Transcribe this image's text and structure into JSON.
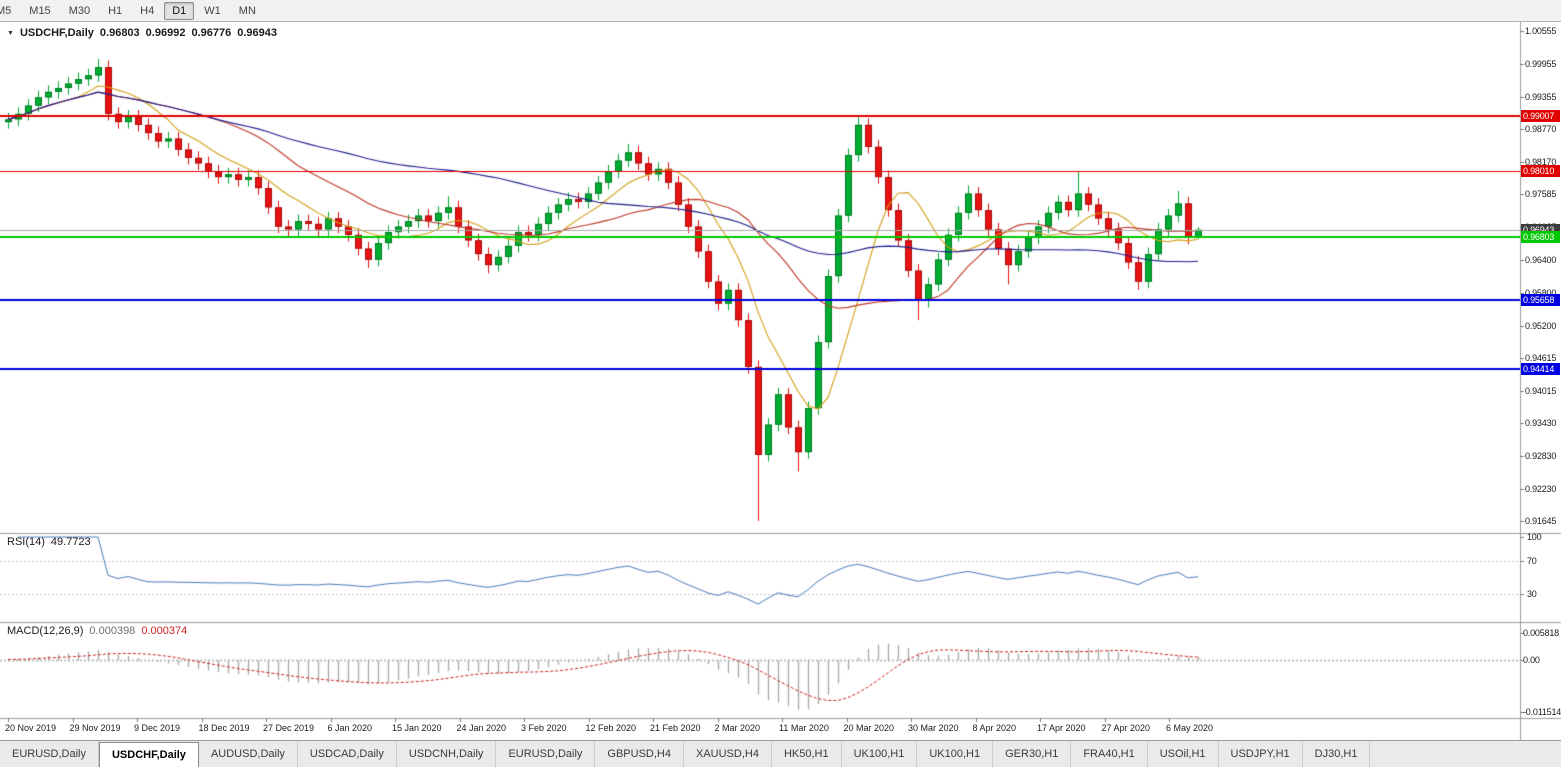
{
  "toolbar": {
    "timeframes": [
      {
        "label": "M5",
        "active": false
      },
      {
        "label": "M15",
        "active": false
      },
      {
        "label": "M30",
        "active": false
      },
      {
        "label": "H1",
        "active": false
      },
      {
        "label": "H4",
        "active": false
      },
      {
        "label": "D1",
        "active": true
      },
      {
        "label": "W1",
        "active": false
      },
      {
        "label": "MN",
        "active": false
      }
    ]
  },
  "chart": {
    "type": "candlestick",
    "title": {
      "symbol": "USDCHF,Daily",
      "open": "0.96803",
      "high": "0.96992",
      "low": "0.96776",
      "close": "0.96943"
    },
    "up_color": "#00ad33",
    "up_border": "#007a24",
    "down_color": "#e81212",
    "down_border": "#a30e0e",
    "price_axis": {
      "top": 1.0072,
      "bottom": 0.9143,
      "labels": [
        "1.00555",
        "0.99955",
        "0.99355",
        "0.98770",
        "0.98170",
        "0.97585",
        "0.96985",
        "0.96400",
        "0.95800",
        "0.95200",
        "0.94615",
        "0.94015",
        "0.93430",
        "0.92830",
        "0.92230",
        "0.91645"
      ]
    },
    "hlines": [
      {
        "price": 0.99007,
        "label": "0.99007",
        "color": "#e00000",
        "width": 2
      },
      {
        "price": 0.9801,
        "label": "0.98010",
        "color": "#e00000",
        "width": 1
      },
      {
        "price": 0.96803,
        "label": "0.96803",
        "color": "#00c800",
        "width": 2
      },
      {
        "price": 0.95658,
        "label": "0.95658",
        "color": "#0000e0",
        "width": 2
      },
      {
        "price": 0.94414,
        "label": "0.94414",
        "color": "#0000e0",
        "width": 2
      }
    ],
    "last_price": {
      "value": 0.96943,
      "label": "0.96943",
      "line_color": "#ababab",
      "box_color": "#3c3c3c"
    },
    "moving_averages": [
      {
        "period": 8,
        "color": "#d4a017"
      },
      {
        "period": 20,
        "color": "#c0392b"
      },
      {
        "period": 50,
        "color": "#1f1f8f"
      }
    ],
    "dates": [
      "20 Nov 2019",
      "29 Nov 2019",
      "9 Dec 2019",
      "18 Dec 2019",
      "27 Dec 2019",
      "6 Jan 2020",
      "15 Jan 2020",
      "24 Jan 2020",
      "3 Feb 2020",
      "12 Feb 2020",
      "21 Feb 2020",
      "2 Mar 2020",
      "11 Mar 2020",
      "20 Mar 2020",
      "30 Mar 2020",
      "8 Apr 2020",
      "17 Apr 2020",
      "27 Apr 2020",
      "6 May 2020"
    ],
    "candles": [
      [
        0.989,
        0.9907,
        0.9878,
        0.9895
      ],
      [
        0.9895,
        0.9917,
        0.9883,
        0.9905
      ],
      [
        0.9905,
        0.9932,
        0.9893,
        0.992
      ],
      [
        0.992,
        0.9947,
        0.9908,
        0.9935
      ],
      [
        0.9935,
        0.9957,
        0.9923,
        0.9945
      ],
      [
        0.9945,
        0.9964,
        0.9933,
        0.9952
      ],
      [
        0.9952,
        0.9972,
        0.994,
        0.996
      ],
      [
        0.996,
        0.998,
        0.9948,
        0.9968
      ],
      [
        0.9968,
        0.9987,
        0.9956,
        0.9975
      ],
      [
        0.9975,
        1.0005,
        0.9963,
        0.999
      ],
      [
        0.999,
        1.0002,
        0.9893,
        0.9905
      ],
      [
        0.9905,
        0.9917,
        0.9878,
        0.989
      ],
      [
        0.989,
        0.9912,
        0.9878,
        0.99
      ],
      [
        0.99,
        0.9912,
        0.9873,
        0.9885
      ],
      [
        0.9885,
        0.9897,
        0.9858,
        0.987
      ],
      [
        0.987,
        0.9882,
        0.9843,
        0.9855
      ],
      [
        0.9855,
        0.9872,
        0.9843,
        0.986
      ],
      [
        0.986,
        0.9872,
        0.9828,
        0.984
      ],
      [
        0.984,
        0.9852,
        0.9813,
        0.9825
      ],
      [
        0.9825,
        0.9837,
        0.9803,
        0.9815
      ],
      [
        0.9815,
        0.9827,
        0.9788,
        0.98
      ],
      [
        0.98,
        0.9812,
        0.9778,
        0.979
      ],
      [
        0.979,
        0.9807,
        0.9778,
        0.9795
      ],
      [
        0.9795,
        0.9807,
        0.9773,
        0.9785
      ],
      [
        0.9785,
        0.9802,
        0.9773,
        0.979
      ],
      [
        0.979,
        0.9802,
        0.9758,
        0.977
      ],
      [
        0.977,
        0.9782,
        0.9723,
        0.9735
      ],
      [
        0.9735,
        0.9747,
        0.9688,
        0.97
      ],
      [
        0.97,
        0.9712,
        0.9683,
        0.9695
      ],
      [
        0.9695,
        0.9722,
        0.9683,
        0.971
      ],
      [
        0.971,
        0.9722,
        0.9693,
        0.9705
      ],
      [
        0.9705,
        0.9717,
        0.9683,
        0.9695
      ],
      [
        0.9695,
        0.9727,
        0.9683,
        0.9715
      ],
      [
        0.9715,
        0.9727,
        0.9688,
        0.97
      ],
      [
        0.97,
        0.9712,
        0.9673,
        0.9685
      ],
      [
        0.9685,
        0.9697,
        0.9648,
        0.966
      ],
      [
        0.966,
        0.9672,
        0.9625,
        0.964
      ],
      [
        0.964,
        0.9682,
        0.9628,
        0.967
      ],
      [
        0.967,
        0.9702,
        0.9658,
        0.969
      ],
      [
        0.969,
        0.9712,
        0.9678,
        0.97
      ],
      [
        0.97,
        0.9722,
        0.9688,
        0.971
      ],
      [
        0.971,
        0.9732,
        0.9698,
        0.972
      ],
      [
        0.972,
        0.9732,
        0.9698,
        0.971
      ],
      [
        0.971,
        0.9737,
        0.9698,
        0.9725
      ],
      [
        0.9725,
        0.9755,
        0.9713,
        0.9735
      ],
      [
        0.9735,
        0.9747,
        0.9688,
        0.97
      ],
      [
        0.97,
        0.9712,
        0.9663,
        0.9675
      ],
      [
        0.9675,
        0.9687,
        0.9638,
        0.965
      ],
      [
        0.965,
        0.9662,
        0.9615,
        0.963
      ],
      [
        0.963,
        0.9657,
        0.9618,
        0.9645
      ],
      [
        0.9645,
        0.9677,
        0.9633,
        0.9665
      ],
      [
        0.9665,
        0.9702,
        0.9653,
        0.969
      ],
      [
        0.969,
        0.9702,
        0.9673,
        0.9685
      ],
      [
        0.9685,
        0.9717,
        0.9673,
        0.9705
      ],
      [
        0.9705,
        0.9737,
        0.9693,
        0.9725
      ],
      [
        0.9725,
        0.9752,
        0.9713,
        0.974
      ],
      [
        0.974,
        0.9762,
        0.9728,
        0.975
      ],
      [
        0.975,
        0.9762,
        0.9733,
        0.9745
      ],
      [
        0.9745,
        0.9772,
        0.9733,
        0.976
      ],
      [
        0.976,
        0.9792,
        0.9748,
        0.978
      ],
      [
        0.978,
        0.9812,
        0.9768,
        0.98
      ],
      [
        0.98,
        0.9832,
        0.9788,
        0.982
      ],
      [
        0.982,
        0.985,
        0.9808,
        0.9835
      ],
      [
        0.9835,
        0.9847,
        0.9803,
        0.9815
      ],
      [
        0.9815,
        0.9827,
        0.9783,
        0.9795
      ],
      [
        0.9795,
        0.9817,
        0.9783,
        0.9805
      ],
      [
        0.9805,
        0.9817,
        0.9768,
        0.978
      ],
      [
        0.978,
        0.9792,
        0.9728,
        0.974
      ],
      [
        0.974,
        0.9752,
        0.9688,
        0.97
      ],
      [
        0.97,
        0.9712,
        0.9643,
        0.9655
      ],
      [
        0.9655,
        0.9667,
        0.9588,
        0.96
      ],
      [
        0.96,
        0.9612,
        0.9548,
        0.956
      ],
      [
        0.956,
        0.9597,
        0.9548,
        0.9585
      ],
      [
        0.9585,
        0.9597,
        0.9518,
        0.953
      ],
      [
        0.953,
        0.9542,
        0.9433,
        0.9445
      ],
      [
        0.9445,
        0.9457,
        0.9165,
        0.9285
      ],
      [
        0.9285,
        0.9352,
        0.9273,
        0.934
      ],
      [
        0.934,
        0.9407,
        0.9328,
        0.9395
      ],
      [
        0.9395,
        0.9407,
        0.9323,
        0.9335
      ],
      [
        0.9335,
        0.9347,
        0.9255,
        0.929
      ],
      [
        0.929,
        0.9382,
        0.9278,
        0.937
      ],
      [
        0.937,
        0.9502,
        0.9358,
        0.949
      ],
      [
        0.949,
        0.9622,
        0.9478,
        0.961
      ],
      [
        0.961,
        0.9732,
        0.9598,
        0.972
      ],
      [
        0.972,
        0.9842,
        0.9708,
        0.983
      ],
      [
        0.983,
        0.99,
        0.9818,
        0.9885
      ],
      [
        0.9885,
        0.9897,
        0.9833,
        0.9845
      ],
      [
        0.9845,
        0.9857,
        0.9778,
        0.979
      ],
      [
        0.979,
        0.9802,
        0.9718,
        0.973
      ],
      [
        0.973,
        0.9742,
        0.9663,
        0.9675
      ],
      [
        0.9675,
        0.9687,
        0.9608,
        0.962
      ],
      [
        0.962,
        0.9632,
        0.953,
        0.9565
      ],
      [
        0.9565,
        0.9607,
        0.9553,
        0.9595
      ],
      [
        0.9595,
        0.9652,
        0.9583,
        0.964
      ],
      [
        0.964,
        0.9697,
        0.9628,
        0.9685
      ],
      [
        0.9685,
        0.9737,
        0.9673,
        0.9725
      ],
      [
        0.9725,
        0.9775,
        0.9713,
        0.976
      ],
      [
        0.976,
        0.9772,
        0.9718,
        0.973
      ],
      [
        0.973,
        0.9742,
        0.9683,
        0.9695
      ],
      [
        0.9695,
        0.9707,
        0.9648,
        0.966
      ],
      [
        0.966,
        0.9672,
        0.9595,
        0.963
      ],
      [
        0.963,
        0.9667,
        0.9618,
        0.9655
      ],
      [
        0.9655,
        0.9692,
        0.9643,
        0.968
      ],
      [
        0.968,
        0.9712,
        0.9668,
        0.97
      ],
      [
        0.97,
        0.9737,
        0.9688,
        0.9725
      ],
      [
        0.9725,
        0.9757,
        0.9713,
        0.9745
      ],
      [
        0.9745,
        0.9757,
        0.9718,
        0.973
      ],
      [
        0.973,
        0.98,
        0.9718,
        0.976
      ],
      [
        0.976,
        0.9772,
        0.9728,
        0.974
      ],
      [
        0.974,
        0.9752,
        0.9703,
        0.9715
      ],
      [
        0.9715,
        0.9727,
        0.9683,
        0.9695
      ],
      [
        0.9695,
        0.9707,
        0.9658,
        0.967
      ],
      [
        0.967,
        0.9682,
        0.9623,
        0.9635
      ],
      [
        0.9635,
        0.9647,
        0.9585,
        0.96
      ],
      [
        0.96,
        0.9662,
        0.9588,
        0.965
      ],
      [
        0.965,
        0.9707,
        0.9638,
        0.9695
      ],
      [
        0.9695,
        0.9732,
        0.9683,
        0.972
      ],
      [
        0.972,
        0.9765,
        0.9708,
        0.9742
      ],
      [
        0.9742,
        0.9754,
        0.9668,
        0.96803
      ],
      [
        0.96803,
        0.96992,
        0.96776,
        0.96943
      ]
    ]
  },
  "rsi": {
    "label": "RSI(14)",
    "value": "49.7723",
    "period": 14,
    "color": "#4a7ebb",
    "levels": [
      {
        "text": "100",
        "value": 100
      },
      {
        "text": "70",
        "value": 70
      },
      {
        "text": "30",
        "value": 30
      }
    ],
    "level_lines": [
      70,
      30
    ]
  },
  "macd": {
    "label": "MACD(12,26,9)",
    "value_main": "0.000398",
    "value_signal": "0.000374",
    "fast": 12,
    "slow": 26,
    "signal_period": 9,
    "bar_color": "#a8a8a8",
    "signal_color": "#cc2222",
    "axis": [
      {
        "text": "0.005818",
        "value": 0.005818
      },
      {
        "text": "0.00",
        "value": 0
      },
      {
        "text": "-0.011514",
        "value": -0.011514
      }
    ]
  },
  "tabs": [
    {
      "label": "EURUSD,Daily",
      "active": false
    },
    {
      "label": "USDCHF,Daily",
      "active": true
    },
    {
      "label": "AUDUSD,Daily",
      "active": false
    },
    {
      "label": "USDCAD,Daily",
      "active": false
    },
    {
      "label": "USDCNH,Daily",
      "active": false
    },
    {
      "label": "EURUSD,Daily",
      "active": false
    },
    {
      "label": "GBPUSD,H4",
      "active": false
    },
    {
      "label": "XAUUSD,H4",
      "active": false
    },
    {
      "label": "HK50,H1",
      "active": false
    },
    {
      "label": "UK100,H1",
      "active": false
    },
    {
      "label": "UK100,H1",
      "active": false
    },
    {
      "label": "GER30,H1",
      "active": false
    },
    {
      "label": "FRA40,H1",
      "active": false
    },
    {
      "label": "USOil,H1",
      "active": false
    },
    {
      "label": "USDJPY,H1",
      "active": false
    },
    {
      "label": "DJ30,H1",
      "active": false
    }
  ]
}
